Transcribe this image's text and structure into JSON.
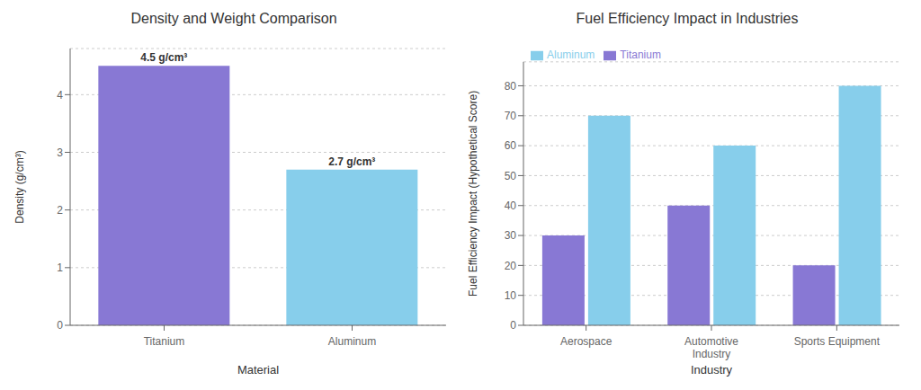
{
  "chart_data": [
    {
      "type": "bar",
      "title": "Density and Weight Comparison",
      "categories": [
        "Titanium",
        "Aluminum"
      ],
      "values": [
        4.5,
        2.7
      ],
      "value_labels": [
        "4.5 g/cm³",
        "2.7 g/cm³"
      ],
      "data_labels": true,
      "colors": [
        "#8878d4",
        "#87CEEB"
      ],
      "x_label": "Material",
      "y_label": "Density (g/cm³)",
      "ylim": [
        0,
        4.8
      ],
      "yticks": [
        0,
        1,
        2,
        3,
        4
      ],
      "grid": true
    },
    {
      "type": "bar",
      "title": "Fuel Efficiency Impact in Industries",
      "categories": [
        "Aerospace",
        "Automotive\nIndustry",
        "Sports Equipment"
      ],
      "series": [
        {
          "name": "Titanium",
          "color": "#8878d4",
          "values": [
            30,
            40,
            20
          ]
        },
        {
          "name": "Aluminum",
          "color": "#87CEEB",
          "values": [
            70,
            60,
            80
          ]
        }
      ],
      "x_label": "Industry",
      "y_label": "Fuel Efficiency Impact (Hypothetical Score)",
      "ylim": [
        0,
        88
      ],
      "yticks": [
        0,
        10,
        20,
        30,
        40,
        50,
        60,
        70,
        80
      ],
      "grid": true,
      "legend": "upper left"
    }
  ]
}
